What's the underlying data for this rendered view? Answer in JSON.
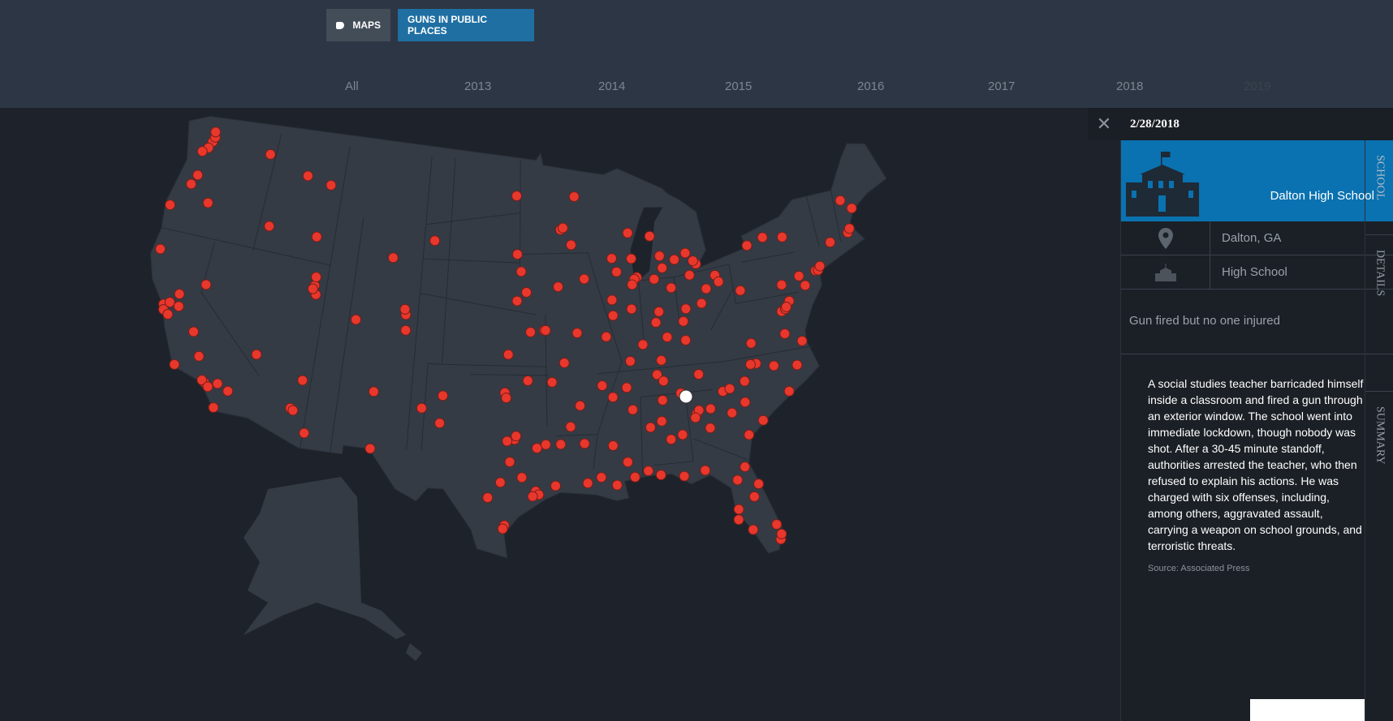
{
  "nav": {
    "maps_label": "MAPS",
    "maps_icon": "us-map-icon",
    "active_label": "GUNS IN PUBLIC PLACES",
    "active_color": "#1f6fa3"
  },
  "years": [
    "All",
    "2013",
    "2014",
    "2015",
    "2016",
    "2017",
    "2018",
    "2019"
  ],
  "panel": {
    "date": "2/28/2018",
    "school_name": "Dalton High School",
    "location": "Dalton, GA",
    "school_type": "High School",
    "outcome": "Gun fired but no one injured",
    "summary": "A social studies teacher barricaded himself inside a classroom and fired a gun through an exterior window. The school went into immediate lockdown, though nobody was shot. After a 30-45 minute standoff, authorities arrested the teacher, who then refused to explain his actions. He was charged with six offenses, including, among others, aggravated assault, carrying a weapon on school grounds, and terroristic threats.",
    "source": "Source: Associated Press",
    "tabs": [
      "SCHOOL",
      "DETAILS",
      "SUMMARY"
    ],
    "accent": "#0a72b0"
  },
  "map_data": {
    "marker_color": "#e8372c",
    "selected_color": "#ffffff",
    "selected": [
      -84.97,
      34.77
    ],
    "incidents": [
      [
        -122.3,
        47.6
      ],
      [
        -122.2,
        47.9
      ],
      [
        -122.5,
        47.2
      ],
      [
        -122.3,
        48.2
      ],
      [
        -117.4,
        47.7
      ],
      [
        -122.9,
        46.9
      ],
      [
        -123.0,
        44.9
      ],
      [
        -122.7,
        45.5
      ],
      [
        -121.3,
        44.1
      ],
      [
        -124.1,
        43.4
      ],
      [
        -122.4,
        37.8
      ],
      [
        -122.3,
        37.5
      ],
      [
        -121.9,
        37.3
      ],
      [
        -122.0,
        38.0
      ],
      [
        -121.5,
        38.6
      ],
      [
        -121.3,
        37.9
      ],
      [
        -119.8,
        36.7
      ],
      [
        -119.0,
        35.4
      ],
      [
        -118.2,
        34.0
      ],
      [
        -118.4,
        34.1
      ],
      [
        -117.9,
        33.8
      ],
      [
        -117.2,
        32.7
      ],
      [
        -117.3,
        34.1
      ],
      [
        -116.5,
        33.8
      ],
      [
        -123.8,
        40.8
      ],
      [
        -120.5,
        34.6
      ],
      [
        -119.8,
        39.5
      ],
      [
        -115.1,
        36.2
      ],
      [
        -116.2,
        43.6
      ],
      [
        -114.0,
        46.9
      ],
      [
        -112.0,
        46.6
      ],
      [
        -112.4,
        43.5
      ],
      [
        -111.9,
        40.7
      ],
      [
        -111.9,
        41.2
      ],
      [
        -111.7,
        40.2
      ],
      [
        -112.0,
        40.5
      ],
      [
        -112.1,
        33.5
      ],
      [
        -111.9,
        33.4
      ],
      [
        -110.9,
        32.2
      ],
      [
        -111.6,
        35.2
      ],
      [
        -104.9,
        39.7
      ],
      [
        -105.0,
        40.0
      ],
      [
        -104.8,
        38.8
      ],
      [
        -108.5,
        39.1
      ],
      [
        -106.6,
        35.1
      ],
      [
        -103.2,
        34.4
      ],
      [
        -106.3,
        42.9
      ],
      [
        -97.7,
        30.3
      ],
      [
        -97.1,
        31.5
      ],
      [
        -96.8,
        32.8
      ],
      [
        -97.3,
        32.7
      ],
      [
        -96.7,
        33.0
      ],
      [
        -95.4,
        29.8
      ],
      [
        -95.2,
        29.6
      ],
      [
        -95.6,
        29.5
      ],
      [
        -98.5,
        29.4
      ],
      [
        -97.4,
        27.8
      ],
      [
        -97.5,
        27.6
      ],
      [
        -94.1,
        30.1
      ],
      [
        -101.8,
        35.2
      ],
      [
        -101.9,
        33.6
      ],
      [
        -106.4,
        31.8
      ],
      [
        -96.3,
        30.6
      ],
      [
        -94.7,
        32.5
      ],
      [
        -95.3,
        32.3
      ],
      [
        -97.5,
        35.5
      ],
      [
        -95.9,
        36.2
      ],
      [
        -97.4,
        35.2
      ],
      [
        -97.3,
        37.7
      ],
      [
        -95.7,
        39.0
      ],
      [
        -94.7,
        39.1
      ],
      [
        -94.6,
        39.1
      ],
      [
        -90.2,
        38.6
      ],
      [
        -93.3,
        37.2
      ],
      [
        -92.3,
        38.9
      ],
      [
        -92.3,
        34.7
      ],
      [
        -94.2,
        36.1
      ],
      [
        -90.7,
        35.8
      ],
      [
        -93.0,
        33.5
      ],
      [
        -90.1,
        30.0
      ],
      [
        -91.1,
        30.5
      ],
      [
        -93.7,
        32.5
      ],
      [
        -92.0,
        30.2
      ],
      [
        -92.1,
        32.5
      ],
      [
        -90.2,
        32.3
      ],
      [
        -89.3,
        31.3
      ],
      [
        -88.7,
        34.3
      ],
      [
        -88.9,
        30.4
      ],
      [
        -86.8,
        33.5
      ],
      [
        -86.3,
        32.4
      ],
      [
        -88.0,
        30.7
      ],
      [
        -85.5,
        32.6
      ],
      [
        -86.6,
        34.7
      ],
      [
        -87.6,
        33.2
      ],
      [
        -84.4,
        33.7
      ],
      [
        -84.2,
        33.9
      ],
      [
        -84.5,
        33.5
      ],
      [
        -83.6,
        32.8
      ],
      [
        -81.1,
        32.1
      ],
      [
        -84.3,
        30.4
      ],
      [
        -82.0,
        33.5
      ],
      [
        -83.4,
        33.9
      ],
      [
        -81.7,
        30.3
      ],
      [
        -82.5,
        27.9
      ],
      [
        -81.4,
        28.5
      ],
      [
        -80.2,
        25.8
      ],
      [
        -80.1,
        26.1
      ],
      [
        -80.3,
        26.7
      ],
      [
        -82.6,
        27.3
      ],
      [
        -87.2,
        30.4
      ],
      [
        -85.7,
        30.2
      ],
      [
        -81.0,
        29.2
      ],
      [
        -82.3,
        29.6
      ],
      [
        -81.8,
        26.6
      ],
      [
        -81.0,
        34.0
      ],
      [
        -80.0,
        32.8
      ],
      [
        -82.4,
        34.8
      ],
      [
        -81.9,
        34.9
      ],
      [
        -78.6,
        35.8
      ],
      [
        -80.8,
        35.2
      ],
      [
        -79.8,
        36.1
      ],
      [
        -77.9,
        34.2
      ],
      [
        -77.0,
        35.6
      ],
      [
        -80.2,
        36.1
      ],
      [
        -86.8,
        36.2
      ],
      [
        -90.0,
        35.1
      ],
      [
        -83.9,
        35.96
      ],
      [
        -85.3,
        35.0
      ],
      [
        -86.4,
        35.8
      ],
      [
        -89.0,
        35.6
      ],
      [
        -85.8,
        38.3
      ],
      [
        -84.5,
        38.0
      ],
      [
        -86.4,
        37.0
      ],
      [
        -88.6,
        37.1
      ],
      [
        -77.4,
        37.5
      ],
      [
        -76.3,
        36.9
      ],
      [
        -79.9,
        37.3
      ],
      [
        -77.3,
        38.8
      ],
      [
        -76.6,
        39.3
      ],
      [
        -77.0,
        38.9
      ],
      [
        -76.9,
        39.0
      ],
      [
        -75.2,
        40.0
      ],
      [
        -80.0,
        40.4
      ],
      [
        -76.9,
        40.3
      ],
      [
        -75.5,
        40.6
      ],
      [
        -74.2,
        40.7
      ],
      [
        -74.0,
        40.7
      ],
      [
        -73.8,
        40.9
      ],
      [
        -76.1,
        43.0
      ],
      [
        -78.9,
        42.9
      ],
      [
        -77.6,
        43.2
      ],
      [
        -71.1,
        42.4
      ],
      [
        -72.6,
        42.1
      ],
      [
        -70.9,
        42.6
      ],
      [
        -70.3,
        43.7
      ],
      [
        -71.0,
        44.3
      ],
      [
        -83.0,
        40.0
      ],
      [
        -81.7,
        41.5
      ],
      [
        -84.5,
        39.1
      ],
      [
        -83.6,
        41.7
      ],
      [
        -81.5,
        41.1
      ],
      [
        -84.2,
        39.8
      ],
      [
        -82.5,
        40.8
      ],
      [
        -86.2,
        39.8
      ],
      [
        -85.1,
        41.1
      ],
      [
        -87.6,
        38.0
      ],
      [
        -86.3,
        41.7
      ],
      [
        -86.5,
        39.2
      ],
      [
        -87.6,
        41.9
      ],
      [
        -87.8,
        41.8
      ],
      [
        -89.6,
        39.8
      ],
      [
        -89.6,
        40.7
      ],
      [
        -88.2,
        40.1
      ],
      [
        -89.1,
        42.3
      ],
      [
        -88.0,
        41.5
      ],
      [
        -83.0,
        42.3
      ],
      [
        -83.2,
        42.5
      ],
      [
        -85.6,
        42.3
      ],
      [
        -84.6,
        42.7
      ],
      [
        -85.7,
        43.0
      ],
      [
        -83.7,
        43.0
      ],
      [
        -86.3,
        44.2
      ],
      [
        -87.9,
        43.0
      ],
      [
        -89.4,
        43.1
      ],
      [
        -88.0,
        44.5
      ],
      [
        -93.3,
        44.9
      ],
      [
        -93.1,
        45.0
      ],
      [
        -92.1,
        46.8
      ],
      [
        -92.5,
        44.0
      ],
      [
        -93.6,
        41.6
      ],
      [
        -91.6,
        42.0
      ],
      [
        -96.4,
        42.5
      ],
      [
        -96.7,
        40.8
      ],
      [
        -96.0,
        41.3
      ],
      [
        -96.7,
        43.5
      ],
      [
        -103.2,
        44.1
      ],
      [
        -96.8,
        46.9
      ]
    ]
  }
}
